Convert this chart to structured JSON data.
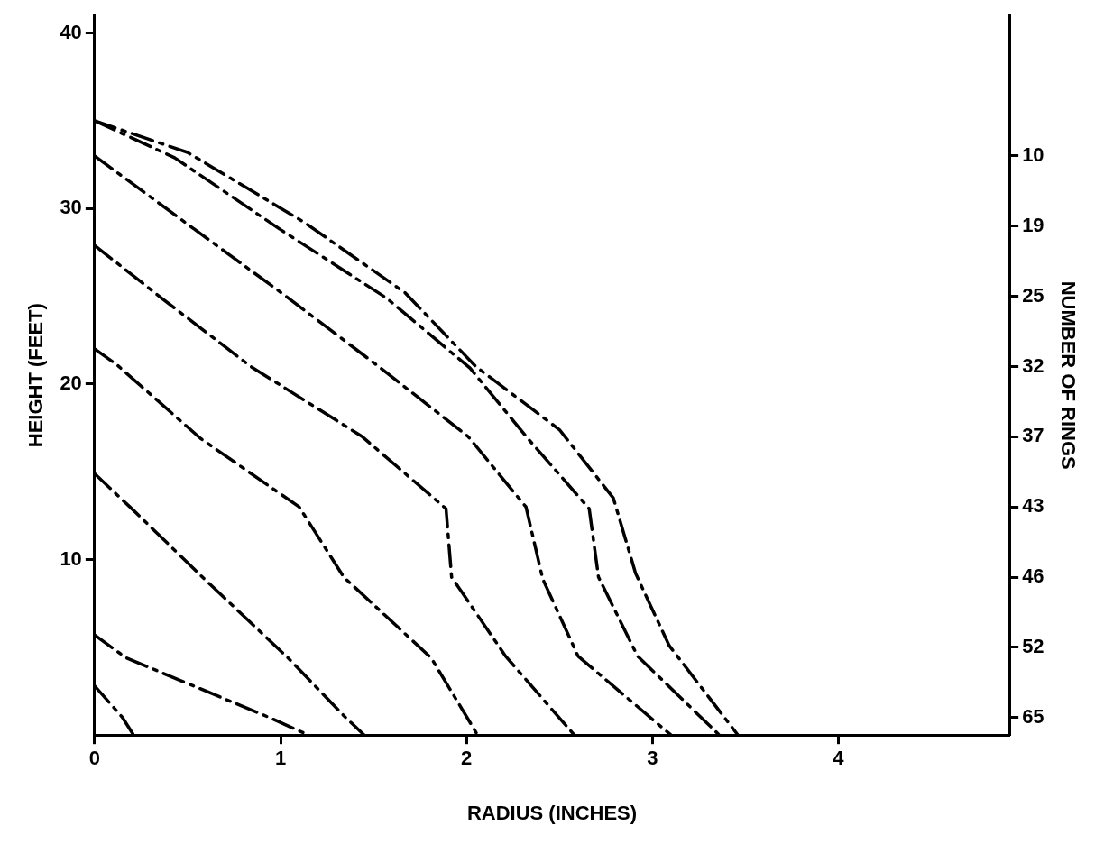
{
  "chart_data": {
    "type": "line",
    "xlabel": "RADIUS (INCHES)",
    "ylabel": "HEIGHT (FEET)",
    "y2label": "NUMBER OF RINGS",
    "xlim": [
      0,
      4.92
    ],
    "ylim": [
      0,
      41
    ],
    "xticks": [
      0,
      1,
      2,
      3,
      4
    ],
    "yticks": [
      10,
      20,
      30,
      40
    ],
    "y2_categories": [
      null,
      null,
      null,
      null,
      null,
      null,
      null,
      null,
      "10",
      null,
      null,
      null,
      "19",
      null,
      null,
      null,
      "25",
      null,
      null,
      null,
      "32",
      null,
      null,
      null,
      "37",
      null,
      null,
      null,
      "43",
      null,
      null,
      null,
      "46",
      null,
      null,
      null,
      "52",
      null,
      null,
      null,
      "65",
      null
    ],
    "marker": "none",
    "line_style": "dashed",
    "series": [
      {
        "color": "#000000",
        "x": [
          0,
          0.5,
          1.13,
          1.67,
          2.05,
          2.5,
          2.79,
          2.91,
          3.09,
          3.46
        ],
        "values": [
          35,
          33.2,
          29.2,
          25.2,
          21.0,
          17.4,
          13.5,
          9.2,
          5.1,
          0
        ]
      },
      {
        "color": "#000000",
        "x": [
          0,
          0.43,
          1.0,
          1.57,
          2.02,
          2.33,
          2.66,
          2.71,
          2.92,
          3.36
        ],
        "values": [
          35,
          32.9,
          28.8,
          24.9,
          20.9,
          16.9,
          12.9,
          9.0,
          4.5,
          0
        ]
      },
      {
        "color": "#000000",
        "x": [
          0,
          0.54,
          1.03,
          1.54,
          2.01,
          2.32,
          2.41,
          2.6,
          3.1
        ],
        "values": [
          33,
          28.8,
          25.0,
          20.9,
          17.0,
          13.0,
          8.9,
          4.5,
          0
        ]
      },
      {
        "color": "#000000",
        "x": [
          0,
          0.36,
          0.84,
          1.44,
          1.89,
          1.92,
          2.21,
          2.58
        ],
        "values": [
          27.9,
          24.9,
          21.0,
          17.0,
          12.9,
          9.0,
          4.5,
          0
        ]
      },
      {
        "color": "#000000",
        "x": [
          0,
          0.12,
          0.57,
          1.1,
          1.34,
          1.81,
          2.06
        ],
        "values": [
          22,
          21.1,
          16.9,
          13.0,
          9.0,
          4.4,
          0
        ]
      },
      {
        "color": "#000000",
        "x": [
          0,
          0.2,
          0.58,
          1.04,
          1.35,
          1.45
        ],
        "values": [
          14.9,
          12.9,
          9.0,
          4.4,
          1.0,
          0
        ]
      },
      {
        "color": "#000000",
        "x": [
          0,
          0.17,
          0.94,
          1.15
        ],
        "values": [
          5.7,
          4.4,
          1.0,
          0
        ]
      },
      {
        "color": "#000000",
        "x": [
          0,
          0.15,
          0.21
        ],
        "values": [
          2.8,
          1.0,
          0
        ]
      }
    ]
  }
}
